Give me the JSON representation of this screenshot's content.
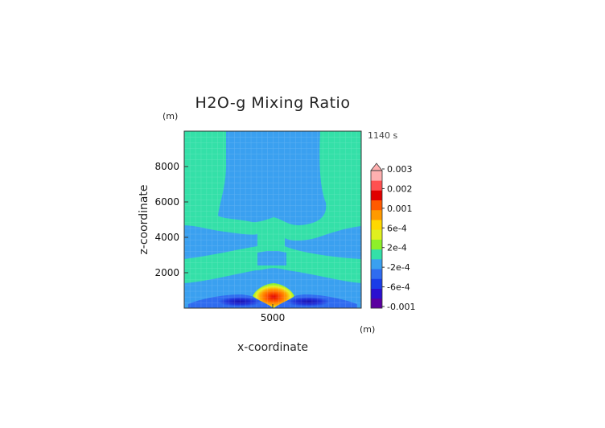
{
  "chart_data": {
    "type": "heatmap",
    "title": "H2O-g Mixing Ratio",
    "time_label": "1140 s",
    "xlabel": "x-coordinate",
    "ylabel": "z-coordinate",
    "x_unit": "(m)",
    "y_unit": "(m)",
    "xlim": [
      0,
      10000
    ],
    "ylim": [
      0,
      10000
    ],
    "x_ticks": [
      {
        "value": 5000,
        "label": "5000"
      }
    ],
    "y_ticks": [
      {
        "value": 2000,
        "label": "2000"
      },
      {
        "value": 4000,
        "label": "4000"
      },
      {
        "value": 6000,
        "label": "6000"
      },
      {
        "value": 8000,
        "label": "8000"
      }
    ],
    "colorbar": {
      "tick_labels": [
        "0.003",
        "0.002",
        "0.001",
        "6e-4",
        "2e-4",
        "-2e-4",
        "-6e-4",
        "-0.001"
      ],
      "colors": [
        "#5a00a0",
        "#2a10d0",
        "#1a3ce8",
        "#2f6cf0",
        "#3aa0f0",
        "#34e0a8",
        "#8ef02a",
        "#e0f020",
        "#ffd800",
        "#ff9a00",
        "#ff5a00",
        "#e00000",
        "#ff5050",
        "#ffb0b0"
      ]
    },
    "regions": [
      {
        "name": "background",
        "value": 0.0,
        "color": "#34e0a8"
      },
      {
        "name": "upper-central-column",
        "value": -0.0001,
        "color": "#3aa0f0"
      },
      {
        "name": "low-level-negative-band",
        "value": -0.0004,
        "color": "#2f6cf0"
      },
      {
        "name": "left-minimum",
        "value": -0.0009,
        "color": "#1a10c0"
      },
      {
        "name": "right-minimum",
        "value": -0.0009,
        "color": "#1a10c0"
      },
      {
        "name": "central-maximum",
        "value": 0.0015,
        "color": "#e00000"
      }
    ]
  }
}
